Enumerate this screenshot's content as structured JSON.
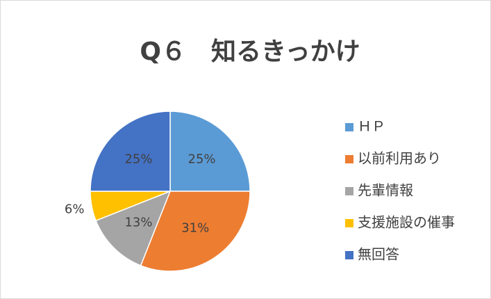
{
  "chart_data": {
    "type": "pie",
    "title": "Q６　知るきっかけ",
    "categories": [
      "ＨＰ",
      "以前利用あり",
      "先輩情報",
      "支援施設の催事",
      "無回答"
    ],
    "values": [
      25,
      31,
      13,
      6,
      25
    ],
    "value_labels": [
      "25%",
      "31%",
      "13%",
      "6%",
      "25%"
    ],
    "colors": [
      "#5b9bd5",
      "#ed7d31",
      "#a5a5a5",
      "#ffc000",
      "#4472c4"
    ],
    "legend": "right"
  }
}
